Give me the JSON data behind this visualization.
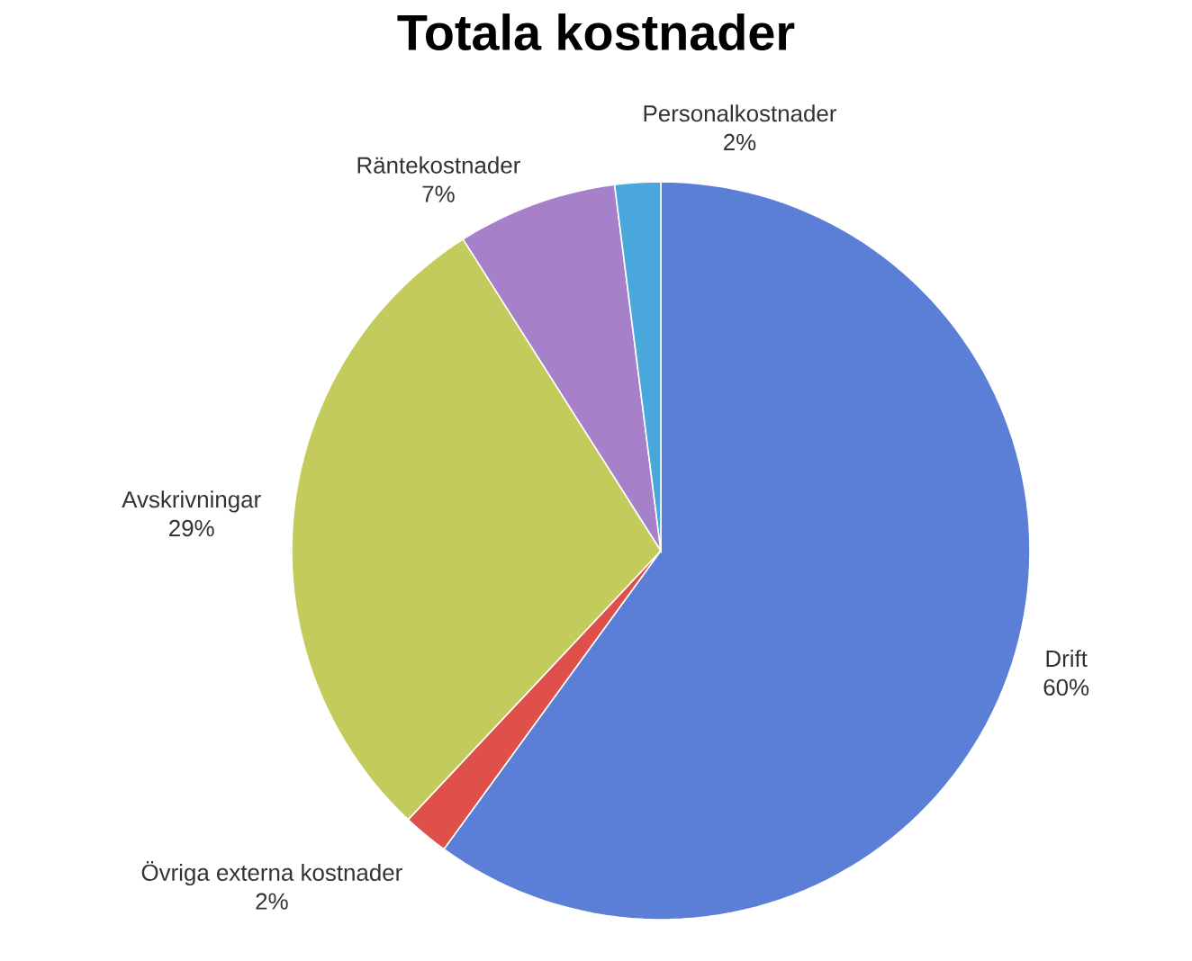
{
  "chart_data": {
    "type": "pie",
    "title": "Totala kostnader",
    "categories": [
      "Drift",
      "Övriga externa kostnader",
      "Avskrivningar",
      "Räntekostnader",
      "Personalkostnader"
    ],
    "values": [
      60,
      2,
      29,
      7,
      2
    ],
    "value_labels": [
      "60%",
      "2%",
      "29%",
      "7%",
      "2%"
    ],
    "colors": [
      "#5b7fd6",
      "#e0504a",
      "#c3cb5c",
      "#a680c9",
      "#4aa7dc"
    ]
  }
}
